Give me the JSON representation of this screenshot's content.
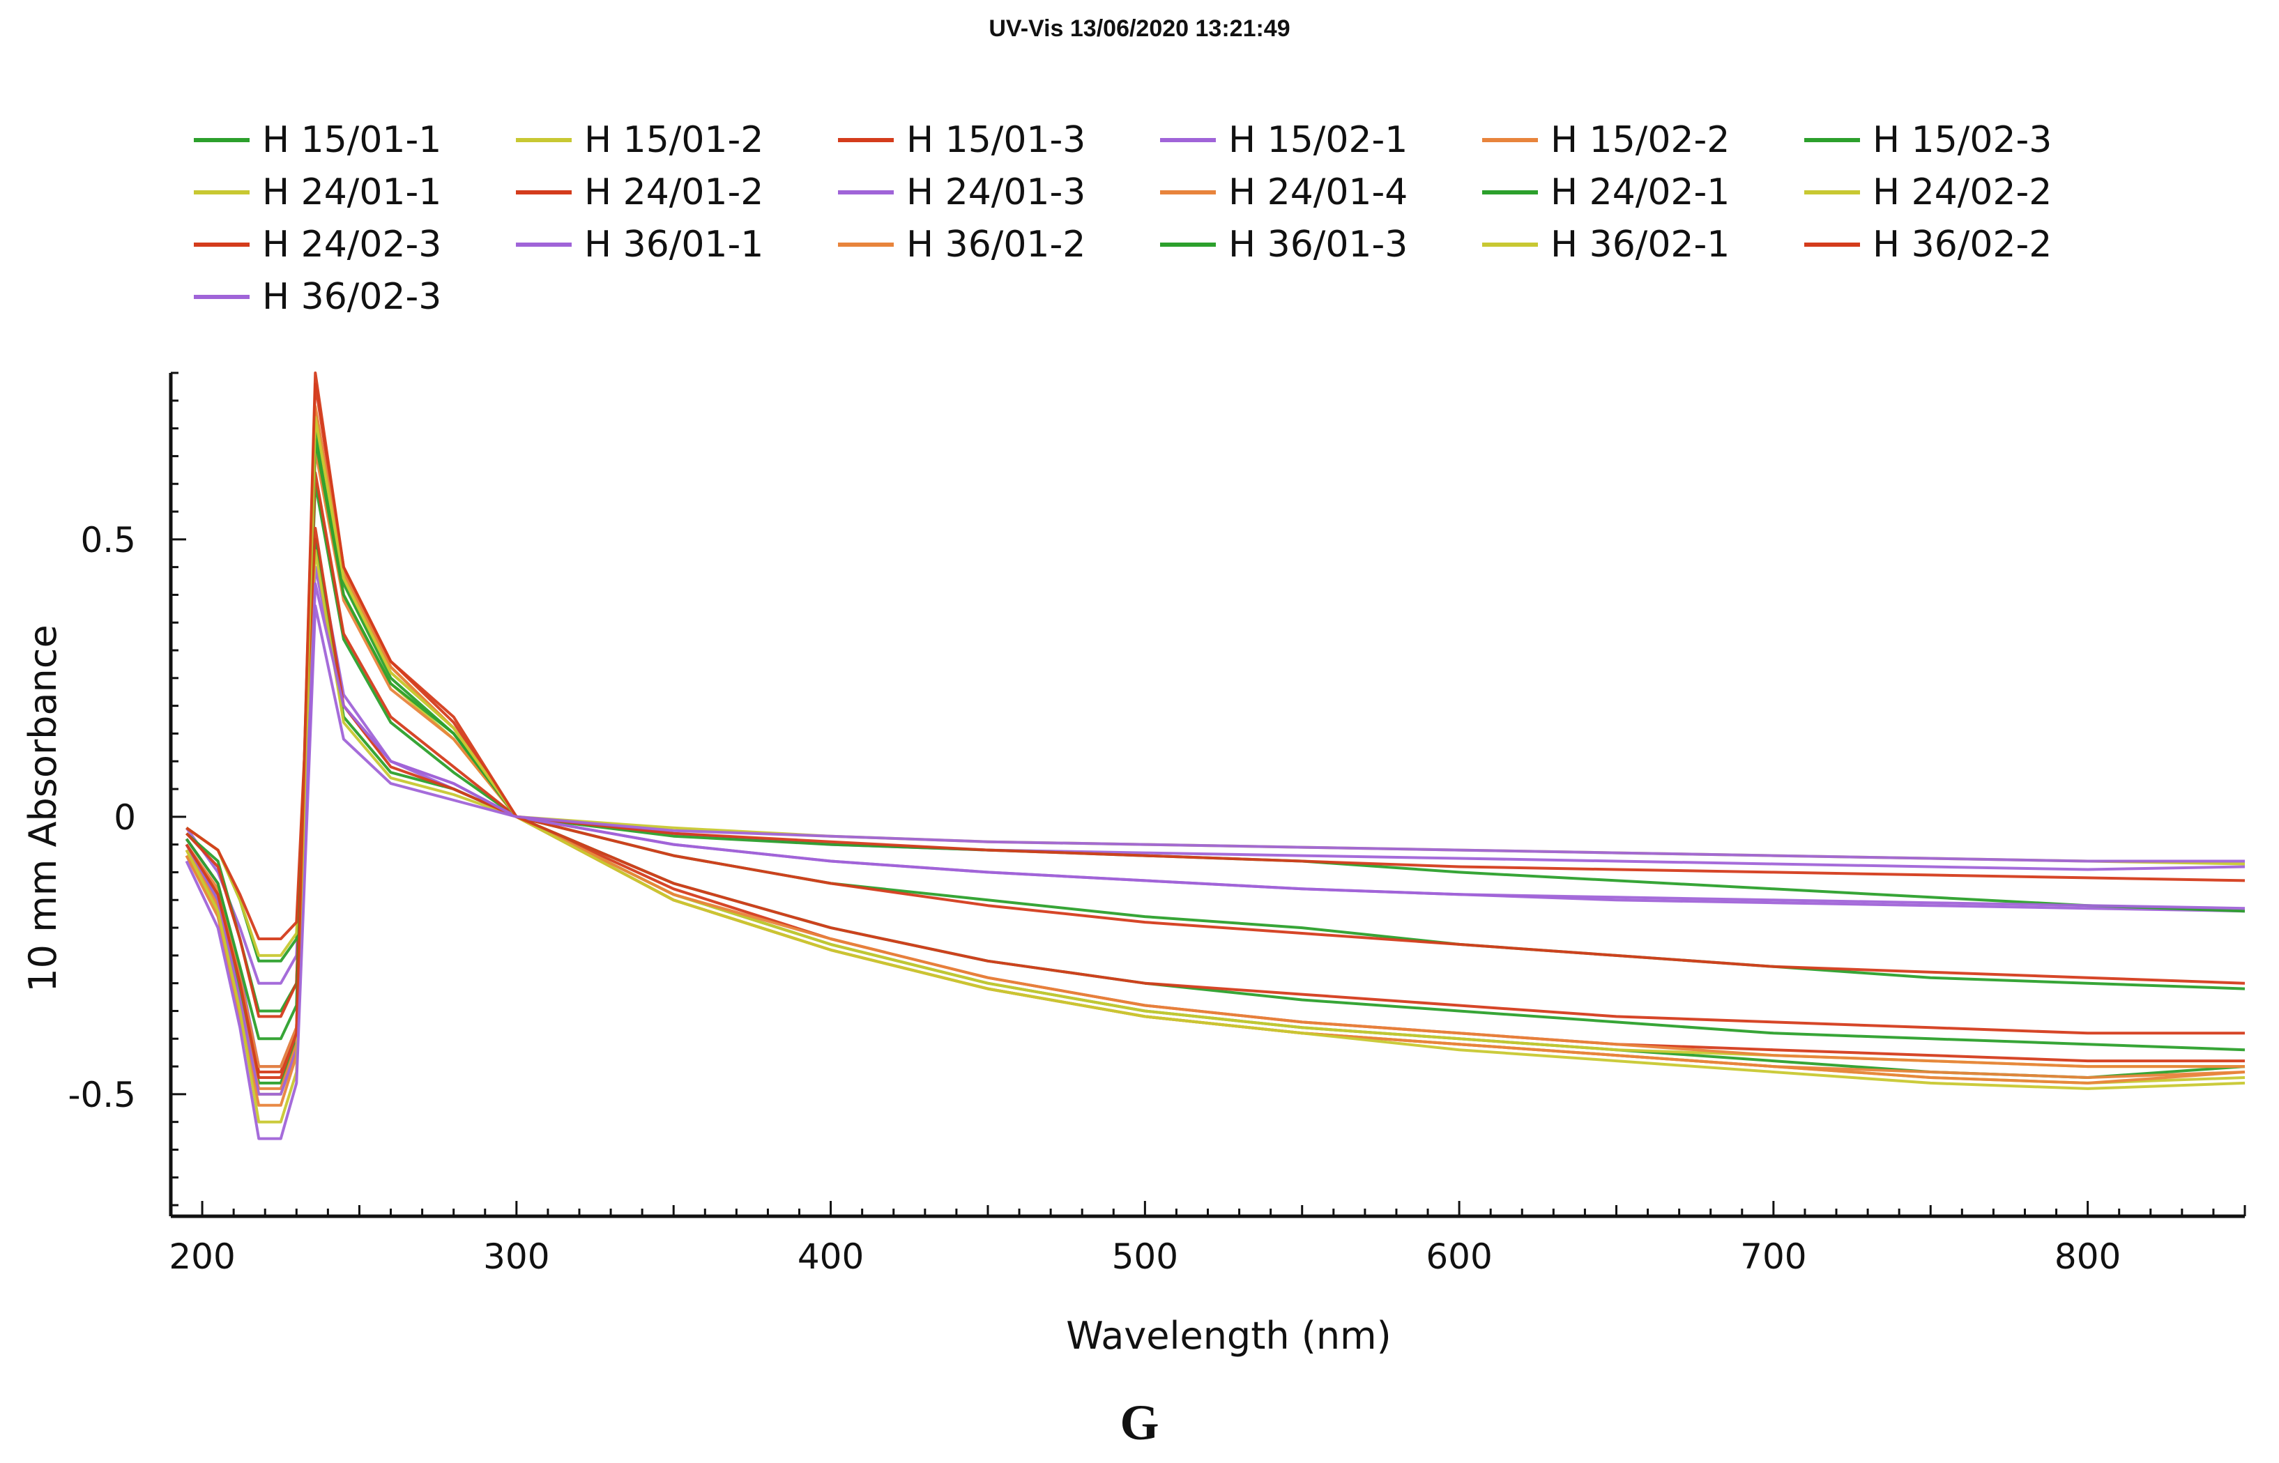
{
  "panel_letter": "G",
  "chart_data": {
    "type": "line",
    "title": "UV-Vis 13/06/2020 13:21:49",
    "xlabel": "Wavelength (nm)",
    "ylabel": "10 mm Absorbance",
    "xlim": [
      190,
      850
    ],
    "ylim": [
      -0.72,
      0.8
    ],
    "xticks": [
      200,
      300,
      400,
      500,
      600,
      700,
      800
    ],
    "xtick_labels": [
      "200",
      "300",
      "400",
      "500",
      "600",
      "700",
      "800"
    ],
    "yticks": [
      -0.5,
      0,
      0.5
    ],
    "ytick_labels": [
      "-0.5",
      "0",
      "0.5"
    ],
    "legend_position": "top",
    "x": [
      195,
      205,
      212,
      218,
      225,
      230,
      236,
      245,
      260,
      280,
      300,
      350,
      400,
      450,
      500,
      550,
      600,
      650,
      700,
      750,
      800,
      850
    ],
    "series": [
      {
        "name": "H 15/01-1",
        "color": "#2ca02c",
        "values": [
          -0.05,
          -0.15,
          -0.32,
          -0.48,
          -0.48,
          -0.4,
          0.7,
          0.42,
          0.25,
          0.15,
          0.0,
          -0.14,
          -0.23,
          -0.3,
          -0.35,
          -0.38,
          -0.4,
          -0.42,
          -0.44,
          -0.46,
          -0.47,
          -0.45
        ]
      },
      {
        "name": "H 15/01-2",
        "color": "#c8c832",
        "values": [
          -0.07,
          -0.17,
          -0.34,
          -0.5,
          -0.5,
          -0.42,
          0.72,
          0.43,
          0.26,
          0.16,
          0.0,
          -0.15,
          -0.24,
          -0.31,
          -0.36,
          -0.39,
          -0.41,
          -0.43,
          -0.45,
          -0.47,
          -0.48,
          -0.47
        ]
      },
      {
        "name": "H 15/01-3",
        "color": "#d43c1c",
        "values": [
          -0.04,
          -0.12,
          -0.28,
          -0.46,
          -0.46,
          -0.38,
          0.78,
          0.45,
          0.28,
          0.17,
          0.0,
          -0.13,
          -0.22,
          -0.29,
          -0.34,
          -0.37,
          -0.39,
          -0.41,
          -0.42,
          -0.43,
          -0.44,
          -0.44
        ]
      },
      {
        "name": "H 15/02-1",
        "color": "#a064d8",
        "values": [
          -0.02,
          -0.1,
          -0.2,
          -0.3,
          -0.3,
          -0.25,
          0.45,
          0.2,
          0.1,
          0.05,
          0.0,
          -0.03,
          -0.05,
          -0.06,
          -0.065,
          -0.07,
          -0.075,
          -0.08,
          -0.085,
          -0.09,
          -0.095,
          -0.09
        ]
      },
      {
        "name": "H 15/02-2",
        "color": "#e8843c",
        "values": [
          -0.06,
          -0.16,
          -0.33,
          -0.49,
          -0.49,
          -0.41,
          0.74,
          0.44,
          0.27,
          0.16,
          0.0,
          -0.15,
          -0.24,
          -0.31,
          -0.36,
          -0.39,
          -0.41,
          -0.43,
          -0.45,
          -0.47,
          -0.48,
          -0.46
        ]
      },
      {
        "name": "H 15/02-3",
        "color": "#2ca02c",
        "values": [
          -0.03,
          -0.08,
          -0.22,
          -0.35,
          -0.35,
          -0.3,
          0.6,
          0.32,
          0.17,
          0.08,
          0.0,
          -0.07,
          -0.12,
          -0.15,
          -0.18,
          -0.2,
          -0.23,
          -0.25,
          -0.27,
          -0.29,
          -0.3,
          -0.31
        ]
      },
      {
        "name": "H 24/01-1",
        "color": "#c8c832",
        "values": [
          -0.05,
          -0.14,
          -0.3,
          -0.45,
          -0.45,
          -0.38,
          0.67,
          0.4,
          0.24,
          0.14,
          0.0,
          -0.14,
          -0.23,
          -0.3,
          -0.35,
          -0.38,
          -0.4,
          -0.42,
          -0.43,
          -0.44,
          -0.45,
          -0.45
        ]
      },
      {
        "name": "H 24/01-2",
        "color": "#d43c1c",
        "values": [
          -0.03,
          -0.09,
          -0.22,
          -0.36,
          -0.36,
          -0.3,
          0.62,
          0.33,
          0.18,
          0.09,
          0.0,
          -0.07,
          -0.12,
          -0.16,
          -0.19,
          -0.21,
          -0.23,
          -0.25,
          -0.27,
          -0.28,
          -0.29,
          -0.3
        ]
      },
      {
        "name": "H 24/01-3",
        "color": "#a064d8",
        "values": [
          -0.04,
          -0.12,
          -0.28,
          -0.45,
          -0.45,
          -0.38,
          0.5,
          0.22,
          0.1,
          0.06,
          0.0,
          -0.05,
          -0.08,
          -0.1,
          -0.115,
          -0.13,
          -0.14,
          -0.15,
          -0.155,
          -0.16,
          -0.165,
          -0.17
        ]
      },
      {
        "name": "H 24/01-4",
        "color": "#e8843c",
        "values": [
          -0.05,
          -0.13,
          -0.29,
          -0.45,
          -0.45,
          -0.38,
          0.66,
          0.39,
          0.23,
          0.14,
          0.0,
          -0.14,
          -0.22,
          -0.29,
          -0.34,
          -0.37,
          -0.39,
          -0.41,
          -0.43,
          -0.44,
          -0.45,
          -0.45
        ]
      },
      {
        "name": "H 24/02-1",
        "color": "#2ca02c",
        "values": [
          -0.02,
          -0.06,
          -0.15,
          -0.26,
          -0.26,
          -0.22,
          0.5,
          0.18,
          0.08,
          0.05,
          0.0,
          -0.035,
          -0.05,
          -0.06,
          -0.07,
          -0.08,
          -0.1,
          -0.115,
          -0.13,
          -0.145,
          -0.16,
          -0.17
        ]
      },
      {
        "name": "H 24/02-2",
        "color": "#c8c832",
        "values": [
          -0.02,
          -0.06,
          -0.15,
          -0.25,
          -0.25,
          -0.21,
          0.48,
          0.17,
          0.07,
          0.04,
          0.0,
          -0.02,
          -0.035,
          -0.045,
          -0.05,
          -0.055,
          -0.06,
          -0.065,
          -0.07,
          -0.075,
          -0.08,
          -0.085
        ]
      },
      {
        "name": "H 24/02-3",
        "color": "#d43c1c",
        "values": [
          -0.02,
          -0.06,
          -0.14,
          -0.22,
          -0.22,
          -0.19,
          0.52,
          0.2,
          0.09,
          0.05,
          0.0,
          -0.03,
          -0.045,
          -0.06,
          -0.07,
          -0.08,
          -0.09,
          -0.095,
          -0.1,
          -0.105,
          -0.11,
          -0.115
        ]
      },
      {
        "name": "H 36/01-1",
        "color": "#a064d8",
        "values": [
          -0.05,
          -0.15,
          -0.33,
          -0.5,
          -0.5,
          -0.42,
          0.42,
          0.2,
          0.1,
          0.06,
          0.0,
          -0.05,
          -0.08,
          -0.1,
          -0.115,
          -0.13,
          -0.14,
          -0.145,
          -0.15,
          -0.155,
          -0.16,
          -0.165
        ]
      },
      {
        "name": "H 36/01-2",
        "color": "#e8843c",
        "values": [
          -0.07,
          -0.18,
          -0.36,
          -0.52,
          -0.52,
          -0.43,
          0.73,
          0.44,
          0.27,
          0.16,
          0.0,
          -0.15,
          -0.24,
          -0.31,
          -0.36,
          -0.39,
          -0.41,
          -0.43,
          -0.45,
          -0.46,
          -0.47,
          -0.46
        ]
      },
      {
        "name": "H 36/01-3",
        "color": "#2ca02c",
        "values": [
          -0.04,
          -0.12,
          -0.27,
          -0.4,
          -0.4,
          -0.34,
          0.68,
          0.4,
          0.24,
          0.15,
          0.0,
          -0.12,
          -0.2,
          -0.26,
          -0.3,
          -0.33,
          -0.35,
          -0.37,
          -0.39,
          -0.4,
          -0.41,
          -0.42
        ]
      },
      {
        "name": "H 36/02-1",
        "color": "#c8c832",
        "values": [
          -0.06,
          -0.17,
          -0.35,
          -0.55,
          -0.55,
          -0.46,
          0.72,
          0.43,
          0.26,
          0.16,
          0.0,
          -0.15,
          -0.24,
          -0.31,
          -0.36,
          -0.39,
          -0.42,
          -0.44,
          -0.46,
          -0.48,
          -0.49,
          -0.48
        ]
      },
      {
        "name": "H 36/02-2",
        "color": "#d43c1c",
        "values": [
          -0.05,
          -0.14,
          -0.3,
          -0.47,
          -0.47,
          -0.39,
          0.8,
          0.45,
          0.28,
          0.18,
          0.0,
          -0.12,
          -0.2,
          -0.26,
          -0.3,
          -0.32,
          -0.34,
          -0.36,
          -0.37,
          -0.38,
          -0.39,
          -0.39
        ]
      },
      {
        "name": "H 36/02-3",
        "color": "#a064d8",
        "values": [
          -0.08,
          -0.2,
          -0.38,
          -0.58,
          -0.58,
          -0.48,
          0.38,
          0.14,
          0.06,
          0.03,
          0.0,
          -0.025,
          -0.035,
          -0.045,
          -0.05,
          -0.055,
          -0.06,
          -0.065,
          -0.07,
          -0.075,
          -0.08,
          -0.08
        ]
      }
    ]
  }
}
